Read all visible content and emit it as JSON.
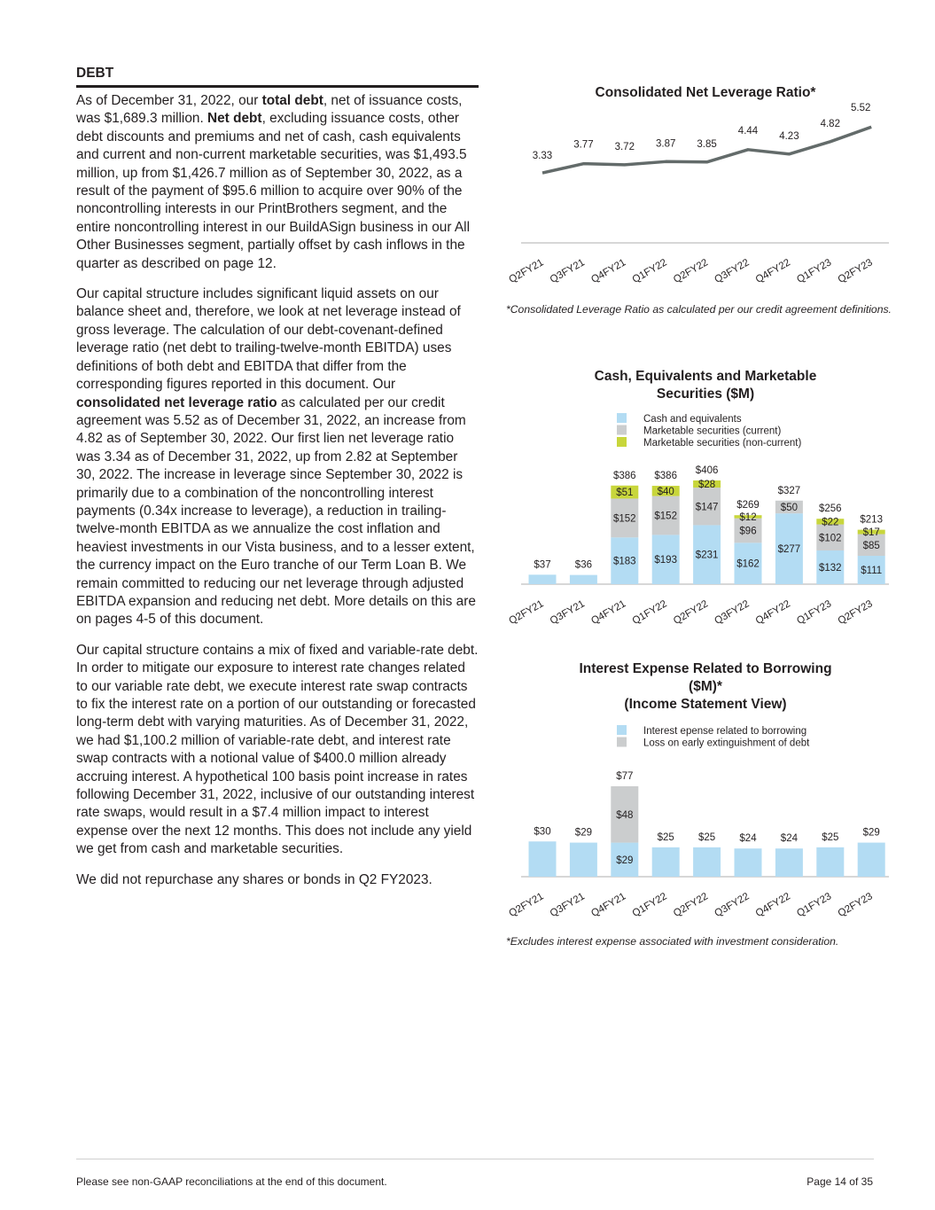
{
  "left": {
    "title": "DEBT",
    "paragraphs": [
      [
        {
          "t": "As of December 31, 2022, our "
        },
        {
          "t": "total debt",
          "b": true
        },
        {
          "t": ", net of issuance costs, was $1,689.3 million. "
        },
        {
          "t": "Net debt",
          "b": true
        },
        {
          "t": ", excluding issuance costs, other debt discounts and premiums and net of cash, cash equivalents and current and non-current marketable securities, was $1,493.5 million, up from $1,426.7 million as of September 30, 2022, as a result of the payment of $95.6 million to acquire over 90% of the noncontrolling interests in our PrintBrothers segment, and the entire noncontrolling interest in our BuildASign business in our All Other Businesses segment, partially offset by cash inflows in the quarter as described on page 12."
        }
      ],
      [
        {
          "t": "Our capital structure includes significant liquid assets on our balance sheet and, therefore, we look at net leverage instead of gross leverage. The calculation of our debt-covenant-defined leverage ratio (net debt to trailing-twelve-month EBITDA) uses definitions of both debt and EBITDA that differ from the corresponding figures reported in this document. Our "
        },
        {
          "t": "consolidated net leverage ratio",
          "b": true
        },
        {
          "t": " as calculated per our credit agreement was 5.52 as of December 31, 2022, an increase from 4.82 as of September 30, 2022. Our first lien net leverage ratio was 3.34 as of December 31, 2022, up from 2.82 at September 30, 2022. The increase in leverage since September 30, 2022 is primarily due to a combination of the noncontrolling interest payments (0.34x increase to leverage), a reduction in trailing-twelve-month EBITDA as we annualize the cost inflation and heaviest investments in our Vista business, and to a lesser extent, the currency impact on the Euro tranche of our Term Loan B. We remain committed  to reducing our net leverage through adjusted EBITDA expansion and reducing net debt. More details on this are on pages 4-5 of this document."
        }
      ],
      [
        {
          "t": "Our capital structure contains a mix of fixed and variable-rate debt. In order to mitigate our exposure to interest rate changes related to our variable rate debt, we execute interest rate swap contracts to fix the interest rate on a portion of our outstanding or forecasted long-term debt with varying maturities. As of December 31, 2022, we had $1,100.2 million of variable-rate debt, and interest rate swap contracts with a notional value of $400.0 million already accruing interest. A hypothetical 100 basis point increase in rates following December 31, 2022, inclusive of our outstanding interest rate swaps, would result in a $7.4 million impact to interest expense over the next 12 months. This does not include any yield we get from cash and marketable securities."
        }
      ],
      [
        {
          "t": "We did not repurchase any shares or bonds in Q2 FY2023."
        }
      ]
    ]
  },
  "chart_data": [
    {
      "type": "line",
      "title": "Consolidated Net Leverage Ratio*",
      "categories": [
        "Q2FY21",
        "Q3FY21",
        "Q4FY21",
        "Q1FY22",
        "Q2FY22",
        "Q3FY22",
        "Q4FY22",
        "Q1FY23",
        "Q2FY23"
      ],
      "series": [
        {
          "values": [
            3.33,
            3.77,
            3.72,
            3.87,
            3.85,
            4.44,
            4.23,
            4.82,
            5.52
          ],
          "color": "#636b6a"
        }
      ],
      "data_labels": [
        "3.33",
        "3.77",
        "3.72",
        "3.87",
        "3.85",
        "4.44",
        "4.23",
        "4.82",
        "5.52"
      ],
      "ylim": [
        0,
        6.5
      ],
      "footnote": "*Consolidated Leverage Ratio as calculated per our credit agreement definitions."
    },
    {
      "type": "bar",
      "stacked": true,
      "title": "Cash, Equivalents and Marketable Securities ($M)",
      "categories": [
        "Q2FY21",
        "Q3FY21",
        "Q4FY21",
        "Q1FY22",
        "Q2FY22",
        "Q3FY22",
        "Q4FY22",
        "Q1FY23",
        "Q2FY23"
      ],
      "series": [
        {
          "name": "Cash and equivalents",
          "color": "#b3dcf3",
          "values": [
            37,
            36,
            183,
            193,
            231,
            162,
            277,
            132,
            111
          ],
          "labels": [
            "",
            "",
            "$183",
            "$193",
            "$231",
            "$162",
            "$277",
            "$132",
            "$111"
          ]
        },
        {
          "name": "Marketable securities (current)",
          "color": "#cbcdce",
          "values": [
            0,
            0,
            152,
            152,
            147,
            96,
            50,
            102,
            85
          ],
          "labels": [
            "",
            "",
            "$152",
            "$152",
            "$147",
            "$96",
            "$50",
            "$102",
            "$85"
          ]
        },
        {
          "name": "Marketable securities (non-current)",
          "color": "#c8d63b",
          "values": [
            0,
            0,
            51,
            40,
            28,
            12,
            0,
            22,
            17
          ],
          "labels": [
            "",
            "",
            "$51",
            "$40",
            "$28",
            "$12",
            "",
            "$22",
            "$17"
          ]
        }
      ],
      "totals": [
        "$37",
        "$36",
        "$386",
        "$386",
        "$406",
        "$269",
        "$327",
        "$256",
        "$213"
      ],
      "ylim": [
        0,
        430
      ],
      "legend": "top"
    },
    {
      "type": "bar",
      "stacked": true,
      "title": "Interest Expense Related to Borrowing ($M)* (Income Statement View)",
      "title_lines": [
        "Interest Expense Related to Borrowing",
        "($M)*",
        "(Income Statement View)"
      ],
      "categories": [
        "Q2FY21",
        "Q3FY21",
        "Q4FY21",
        "Q1FY22",
        "Q2FY22",
        "Q3FY22",
        "Q4FY22",
        "Q1FY23",
        "Q2FY23"
      ],
      "series": [
        {
          "name": "Interest epense related to borrowing",
          "color": "#b3dcf3",
          "values": [
            30,
            29,
            29,
            25,
            25,
            24,
            24,
            25,
            29
          ],
          "labels": [
            "",
            "",
            "$29",
            "",
            "",
            "",
            "",
            "",
            ""
          ]
        },
        {
          "name": "Loss on early extinguishment of debt",
          "color": "#cbcdce",
          "values": [
            0,
            0,
            48,
            0,
            0,
            0,
            0,
            0,
            0
          ],
          "labels": [
            "",
            "",
            "$48",
            "",
            "",
            "",
            "",
            "",
            ""
          ]
        }
      ],
      "totals": [
        "$30",
        "$29",
        "$77",
        "$25",
        "$25",
        "$24",
        "$24",
        "$25",
        "$29"
      ],
      "ylim": [
        0,
        80
      ],
      "legend": "top",
      "footnote": "*Excludes interest expense associated with investment consideration."
    }
  ],
  "chart_titles": {
    "c2_line1": "Cash, Equivalents and Marketable",
    "c2_line2": "Securities ($M)"
  },
  "footer": {
    "left": "Please see non-GAAP reconciliations at the end of this document.",
    "right": "Page 14 of 35"
  }
}
